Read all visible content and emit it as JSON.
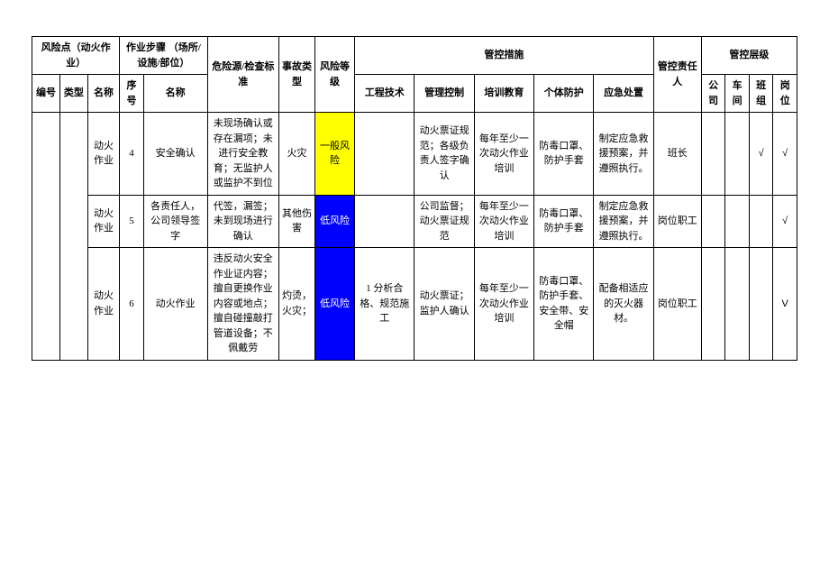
{
  "headers": {
    "risk_point": "风险点（动火作业）",
    "work_step": "作业步骤\n（场所/设施/部位）",
    "hazard_standard": "危险源/检查标准",
    "accident_type": "事故类型",
    "risk_level": "风险等级",
    "control_measures": "管控措施",
    "responsible": "管控责任人",
    "control_level": "管控层级",
    "number": "编号",
    "type": "类型",
    "name": "名称",
    "seq": "序号",
    "step_name": "名称",
    "engineering": "工程技术",
    "management": "管理控制",
    "training": "培训教育",
    "ppe": "个体防护",
    "emergency": "应急处置",
    "company": "公司",
    "workshop": "车间",
    "team": "班组",
    "position": "岗位"
  },
  "rows": [
    {
      "name": "动火作业",
      "seq": "4",
      "step_name": "安全确认",
      "hazard": "未现场确认或存在漏项；未进行安全教育；无监护人或监护不到位",
      "accident": "火灾",
      "risk_level": "一般风险",
      "risk_class": "risk-yellow",
      "engineering": "",
      "management": "动火票证规范；各级负责人签字确认",
      "training": "每年至少一次动火作业培训",
      "ppe": "防毒口罩、防护手套",
      "emergency": "制定应急救援预案，并遵照执行。",
      "responsible": "班长",
      "company": "",
      "workshop": "",
      "team": "√",
      "position": "√"
    },
    {
      "name": "动火作业",
      "seq": "5",
      "step_name": "各责任人，公司领导签字",
      "hazard": "代签，漏签；未到现场进行确认",
      "accident": "其他伤害",
      "risk_level": "低风险",
      "risk_class": "risk-blue",
      "engineering": "",
      "management": "公司监督；动火票证规范",
      "training": "每年至少一次动火作业培训",
      "ppe": "防毒口罩、防护手套",
      "emergency": "制定应急救援预案，并遵照执行。",
      "responsible": "岗位职工",
      "company": "",
      "workshop": "",
      "team": "",
      "position": "√"
    },
    {
      "name": "动火作业",
      "seq": "6",
      "step_name": "动火作业",
      "hazard": "违反动火安全作业证内容；擅自更换作业内容或地点；擅自碰撞敲打管道设备；不佩戴劳",
      "accident": "灼烫，火灾；",
      "risk_level": "低风险",
      "risk_class": "risk-blue",
      "engineering": "1 分析合格、规范施工",
      "management": "动火票证；监护人确认",
      "training": "每年至少一次动火作业培训",
      "ppe": "防毒口罩、防护手套、安全带、安全帽",
      "emergency": "配备相适应的灭火器材。",
      "responsible": "岗位职工",
      "company": "",
      "workshop": "",
      "team": "",
      "position": "V"
    }
  ]
}
